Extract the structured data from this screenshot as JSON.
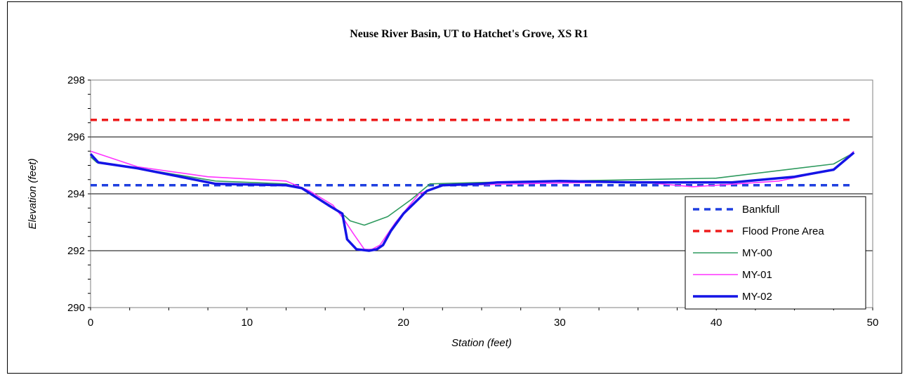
{
  "chart_data": {
    "type": "line",
    "title": "Neuse River Basin, UT to Hatchet's Grove, XS R1",
    "xlabel": "Station (feet)",
    "ylabel": "Elevation (feet)",
    "xlim": [
      0,
      50
    ],
    "ylim": [
      290,
      298
    ],
    "xticks": [
      "0",
      "10",
      "20",
      "30",
      "40",
      "50"
    ],
    "yticks": [
      "290",
      "292",
      "294",
      "296",
      "298"
    ],
    "grid": "horizontal major gridlines",
    "legend_position": "lower-right",
    "series": [
      {
        "name": "Bankfull",
        "color": "#1f3fe0",
        "style": "dashed",
        "x": [
          0,
          48.8
        ],
        "y": [
          294.3,
          294.3
        ]
      },
      {
        "name": "Flood Prone Area",
        "color": "#ee1c1c",
        "style": "dashed",
        "x": [
          0,
          48.8
        ],
        "y": [
          296.6,
          296.6
        ]
      },
      {
        "name": "MY-00",
        "color": "#2e9a5e",
        "style": "solid-thin",
        "x": [
          0,
          0.4,
          3,
          8,
          12.5,
          13.5,
          15.3,
          16.3,
          16.6,
          17.5,
          19,
          20.5,
          21.7,
          25,
          30,
          35,
          40,
          47.5,
          48.8
        ],
        "y": [
          295.3,
          295.1,
          294.9,
          294.45,
          294.35,
          294.2,
          293.6,
          293.2,
          293.05,
          292.9,
          293.2,
          293.8,
          294.35,
          294.4,
          294.45,
          294.5,
          294.55,
          295.05,
          295.45
        ]
      },
      {
        "name": "MY-01",
        "color": "#ff33ff",
        "style": "solid-thin",
        "x": [
          0,
          3,
          7.5,
          12.5,
          14,
          15.5,
          16.2,
          16.8,
          17.5,
          18,
          18.5,
          19.5,
          21,
          22.5,
          25,
          30,
          35,
          38.5,
          40,
          44,
          47.5,
          48.8
        ],
        "y": [
          295.5,
          294.95,
          294.6,
          294.45,
          294.1,
          293.6,
          293.1,
          292.6,
          292.05,
          292.05,
          292.2,
          293.0,
          294.0,
          294.3,
          294.32,
          294.38,
          294.42,
          294.25,
          294.3,
          294.45,
          294.85,
          295.5
        ]
      },
      {
        "name": "MY-02",
        "color": "#1414e6",
        "style": "solid-thick",
        "x": [
          0,
          0.5,
          3,
          8,
          12.5,
          13.5,
          15.2,
          16.1,
          16.4,
          17,
          17.8,
          18.3,
          18.7,
          19.2,
          20,
          21.5,
          22.5,
          25,
          26,
          30,
          35,
          40,
          41,
          45,
          47.5,
          48.8
        ],
        "y": [
          295.4,
          295.1,
          294.9,
          294.35,
          294.3,
          294.2,
          293.6,
          293.3,
          292.4,
          292.05,
          292.0,
          292.05,
          292.2,
          292.7,
          293.3,
          294.1,
          294.3,
          294.35,
          294.4,
          294.45,
          294.4,
          294.4,
          294.4,
          294.6,
          294.85,
          295.45
        ]
      }
    ]
  }
}
